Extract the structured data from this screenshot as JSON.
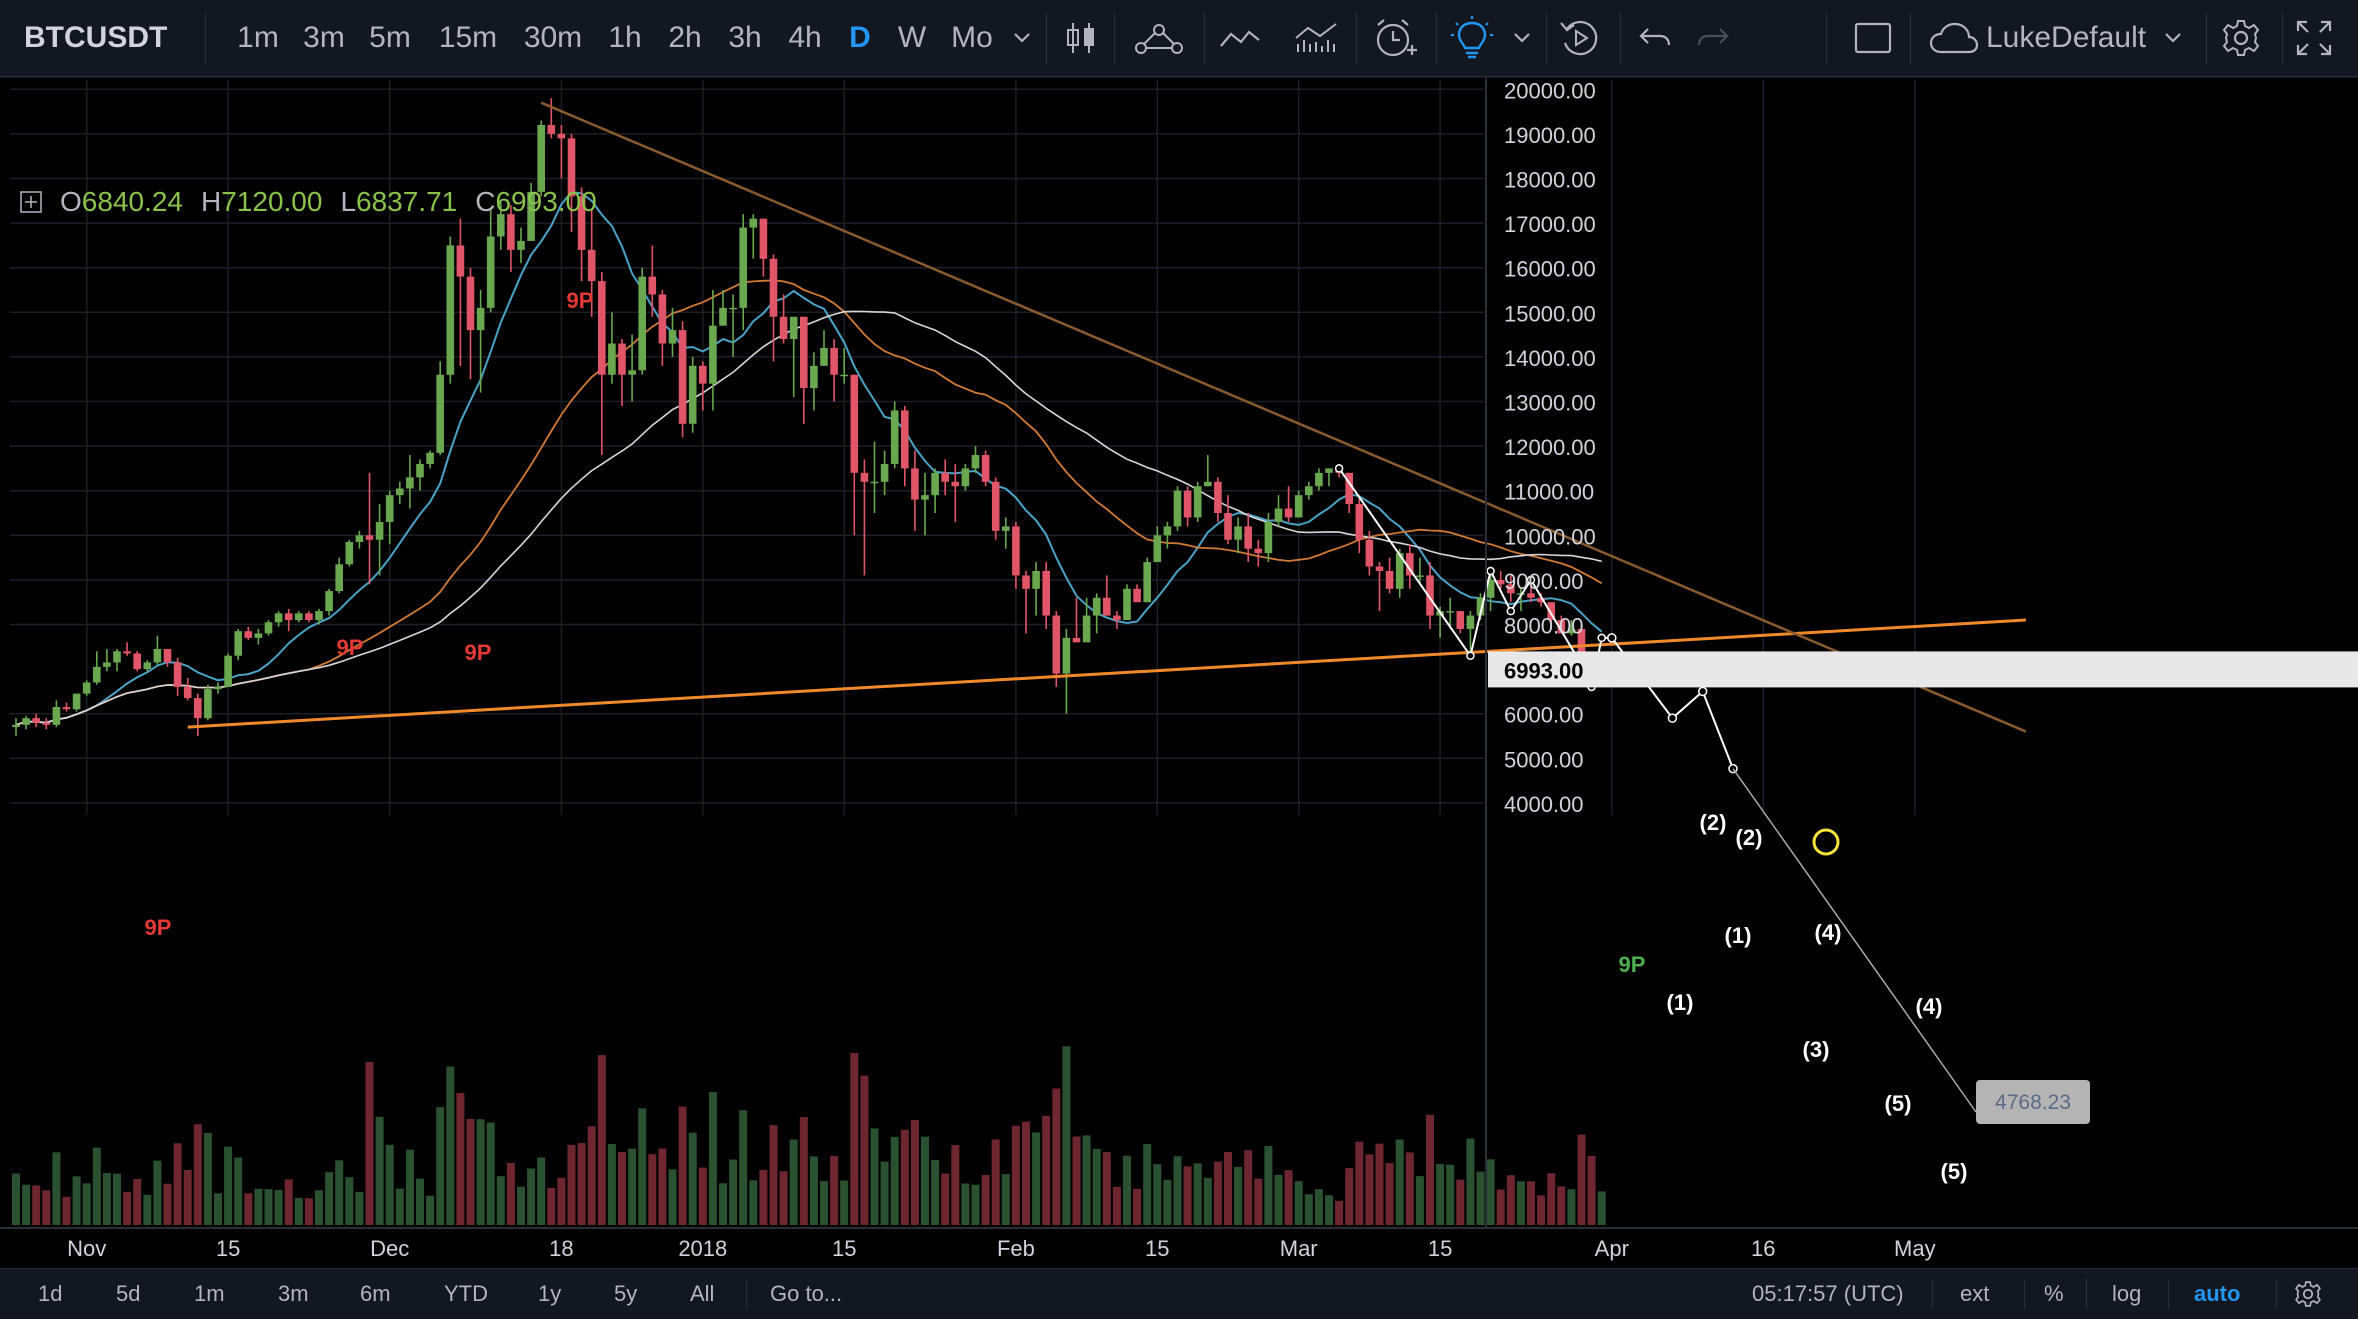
{
  "toolbar": {
    "symbol": "BTCUSDT",
    "timeframes": [
      "1m",
      "3m",
      "5m",
      "15m",
      "30m",
      "1h",
      "2h",
      "3h",
      "4h",
      "D",
      "W",
      "Mo"
    ],
    "active_timeframe": "D",
    "user": "LukeDefault",
    "icons": [
      "chevron-down-icon",
      "candles-icon",
      "indicators-icon",
      "line-icon",
      "compare-icon",
      "alert-icon",
      "lightbulb-icon",
      "replay-icon",
      "undo-icon",
      "redo-icon",
      "layout-icon",
      "cloud-icon",
      "gear-icon",
      "fullscreen-icon"
    ]
  },
  "ohlc": {
    "o_label": "O",
    "o": "6840.24",
    "h_label": "H",
    "h": "7120.00",
    "l_label": "L",
    "l": "6837.71",
    "c_label": "C",
    "c": "6993.00"
  },
  "price_axis": {
    "ticks": [
      "20000.00",
      "19000.00",
      "18000.00",
      "17000.00",
      "16000.00",
      "15000.00",
      "14000.00",
      "13000.00",
      "12000.00",
      "11000.00",
      "10000.00",
      "9000.00",
      "8000.00",
      "6993.00",
      "6000.00",
      "5000.00",
      "4000.00"
    ],
    "current_price": "6993.00"
  },
  "time_axis": {
    "ticks": [
      "Nov",
      "15",
      "Dec",
      "18",
      "2018",
      "15",
      "Feb",
      "15",
      "Mar",
      "15",
      "Apr",
      "16",
      "May"
    ]
  },
  "annotations": {
    "labels": [
      "9P",
      "9P",
      "9P",
      "9P",
      "9P",
      "(2)",
      "(2)",
      "(1)",
      "(1)",
      "(4)",
      "(4)",
      "(3)",
      "(5)",
      "(5)"
    ],
    "price_label": "4768.23"
  },
  "bottombar": {
    "ranges": [
      "1d",
      "5d",
      "1m",
      "3m",
      "6m",
      "YTD",
      "1y",
      "5y",
      "All"
    ],
    "goto": "Go to...",
    "time": "05:17:57 (UTC)",
    "options": [
      "ext",
      "%",
      "log",
      "auto"
    ],
    "active_option": "auto"
  },
  "colors": {
    "up": "#6aa84f",
    "down": "#e05568",
    "background": "#000000",
    "panel": "#131722",
    "accent": "#2196f3",
    "trendline_orange": "#f0892a",
    "trendline_brown": "#8a5a2e",
    "ma_blue": "#4aa3c8",
    "ma_white": "#d8d8d8",
    "ma_orange": "#d07a35",
    "marker_yellow": "#f5e33a"
  },
  "chart_data": {
    "type": "candlestick",
    "symbol": "BTCUSDT",
    "interval": "D",
    "ylim": [
      3700,
      20500
    ],
    "y_scale": "linear",
    "x_range": [
      "2017-10-25",
      "2018-05-11"
    ],
    "grid": true,
    "candles": [
      [
        "2017-10-25",
        5700,
        5900,
        5500,
        5750
      ],
      [
        "2017-10-26",
        5750,
        5950,
        5650,
        5900
      ],
      [
        "2017-10-27",
        5900,
        6000,
        5700,
        5800
      ],
      [
        "2017-10-28",
        5800,
        5900,
        5650,
        5750
      ],
      [
        "2017-10-29",
        5750,
        6300,
        5700,
        6150
      ],
      [
        "2017-10-30",
        6150,
        6250,
        6050,
        6100
      ],
      [
        "2017-10-31",
        6100,
        6450,
        6050,
        6450
      ],
      [
        "2017-11-01",
        6450,
        6750,
        6400,
        6700
      ],
      [
        "2017-11-02",
        6700,
        7400,
        6650,
        7050
      ],
      [
        "2017-11-03",
        7050,
        7450,
        6950,
        7150
      ],
      [
        "2017-11-04",
        7150,
        7450,
        6950,
        7400
      ],
      [
        "2017-11-05",
        7400,
        7600,
        7300,
        7350
      ],
      [
        "2017-11-06",
        7350,
        7400,
        6950,
        7000
      ],
      [
        "2017-11-07",
        7000,
        7200,
        6950,
        7150
      ],
      [
        "2017-11-08",
        7150,
        7750,
        7100,
        7450
      ],
      [
        "2017-11-09",
        7450,
        7450,
        7050,
        7150
      ],
      [
        "2017-11-10",
        7150,
        7250,
        6400,
        6600
      ],
      [
        "2017-11-11",
        6600,
        6800,
        6300,
        6350
      ],
      [
        "2017-11-12",
        6350,
        6450,
        5500,
        5900
      ],
      [
        "2017-11-13",
        5900,
        6650,
        5850,
        6550
      ],
      [
        "2017-11-14",
        6550,
        6700,
        6450,
        6600
      ],
      [
        "2017-11-15",
        6600,
        7350,
        6600,
        7300
      ],
      [
        "2017-11-16",
        7300,
        7900,
        7200,
        7850
      ],
      [
        "2017-11-17",
        7850,
        7950,
        7650,
        7700
      ],
      [
        "2017-11-18",
        7700,
        7900,
        7550,
        7800
      ],
      [
        "2017-11-19",
        7800,
        8100,
        7750,
        8050
      ],
      [
        "2017-11-20",
        8050,
        8300,
        7950,
        8250
      ],
      [
        "2017-11-21",
        8250,
        8350,
        7850,
        8100
      ],
      [
        "2017-11-22",
        8100,
        8300,
        8050,
        8250
      ],
      [
        "2017-11-23",
        8250,
        8300,
        8050,
        8100
      ],
      [
        "2017-11-24",
        8100,
        8350,
        8000,
        8300
      ],
      [
        "2017-11-25",
        8300,
        8800,
        8200,
        8750
      ],
      [
        "2017-11-26",
        8750,
        9500,
        8700,
        9350
      ],
      [
        "2017-11-27",
        9350,
        9900,
        9300,
        9850
      ],
      [
        "2017-11-28",
        9850,
        10100,
        9700,
        10000
      ],
      [
        "2017-11-29",
        10000,
        11400,
        8900,
        9900
      ],
      [
        "2017-11-30",
        9900,
        10700,
        9100,
        10300
      ],
      [
        "2017-12-01",
        10300,
        11000,
        9800,
        10900
      ],
      [
        "2017-12-02",
        10900,
        11200,
        10700,
        11050
      ],
      [
        "2017-12-03",
        11050,
        11800,
        10600,
        11300
      ],
      [
        "2017-12-04",
        11300,
        11700,
        11000,
        11600
      ],
      [
        "2017-12-05",
        11600,
        11900,
        11500,
        11850
      ],
      [
        "2017-12-06",
        11850,
        13900,
        11800,
        13600
      ],
      [
        "2017-12-07",
        13600,
        16700,
        13400,
        16500
      ],
      [
        "2017-12-08",
        16500,
        17100,
        13800,
        15800
      ],
      [
        "2017-12-09",
        15800,
        16000,
        13500,
        14600
      ],
      [
        "2017-12-10",
        14600,
        15500,
        13200,
        15100
      ],
      [
        "2017-12-11",
        15100,
        17300,
        15000,
        16700
      ],
      [
        "2017-12-12",
        16700,
        17500,
        16400,
        17200
      ],
      [
        "2017-12-13",
        17200,
        17400,
        15900,
        16400
      ],
      [
        "2017-12-14",
        16400,
        16900,
        16100,
        16600
      ],
      [
        "2017-12-15",
        16600,
        17900,
        16600,
        17700
      ],
      [
        "2017-12-16",
        17700,
        19300,
        17600,
        19200
      ],
      [
        "2017-12-17",
        19200,
        19800,
        18900,
        19000
      ],
      [
        "2017-12-18",
        19000,
        19200,
        18000,
        18900
      ],
      [
        "2017-12-19",
        18900,
        19000,
        16800,
        17600
      ],
      [
        "2017-12-20",
        17600,
        17800,
        15700,
        16400
      ],
      [
        "2017-12-21",
        16400,
        17300,
        14900,
        15700
      ],
      [
        "2017-12-22",
        15700,
        15900,
        11800,
        13600
      ],
      [
        "2017-12-23",
        13600,
        15000,
        13400,
        14300
      ],
      [
        "2017-12-24",
        14300,
        14400,
        12900,
        13600
      ],
      [
        "2017-12-25",
        13600,
        14500,
        13000,
        13700
      ],
      [
        "2017-12-26",
        13700,
        16000,
        13600,
        15800
      ],
      [
        "2017-12-27",
        15800,
        16500,
        14900,
        15400
      ],
      [
        "2017-12-28",
        15400,
        15500,
        13800,
        14300
      ],
      [
        "2017-12-29",
        14300,
        15100,
        14000,
        14600
      ],
      [
        "2017-12-30",
        14600,
        14800,
        12200,
        12500
      ],
      [
        "2017-12-31",
        12500,
        14000,
        12300,
        13800
      ],
      [
        "2018-01-01",
        13800,
        13900,
        12800,
        13400
      ],
      [
        "2018-01-02",
        13400,
        15500,
        12800,
        14700
      ],
      [
        "2018-01-03",
        14700,
        15500,
        14700,
        15100
      ],
      [
        "2018-01-04",
        15100,
        15400,
        14000,
        15100
      ],
      [
        "2018-01-05",
        15100,
        17200,
        14600,
        16900
      ],
      [
        "2018-01-06",
        16900,
        17200,
        16200,
        17100
      ],
      [
        "2018-01-07",
        17100,
        17100,
        15800,
        16200
      ],
      [
        "2018-01-08",
        16200,
        16300,
        13900,
        14900
      ],
      [
        "2018-01-09",
        14900,
        15400,
        14300,
        14400
      ],
      [
        "2018-01-10",
        14400,
        14900,
        13100,
        14900
      ],
      [
        "2018-01-11",
        14900,
        14900,
        12500,
        13300
      ],
      [
        "2018-01-12",
        13300,
        14100,
        12800,
        13800
      ],
      [
        "2018-01-13",
        13800,
        14600,
        13800,
        14200
      ],
      [
        "2018-01-14",
        14200,
        14400,
        13000,
        13600
      ],
      [
        "2018-01-15",
        13600,
        14200,
        13400,
        13600
      ],
      [
        "2018-01-16",
        13600,
        13600,
        10000,
        11400
      ],
      [
        "2018-01-17",
        11400,
        11700,
        9100,
        11200
      ],
      [
        "2018-01-18",
        11200,
        12100,
        10500,
        11200
      ],
      [
        "2018-01-19",
        11200,
        11900,
        10900,
        11600
      ],
      [
        "2018-01-20",
        11600,
        13000,
        11500,
        12800
      ],
      [
        "2018-01-21",
        12800,
        12900,
        11100,
        11500
      ],
      [
        "2018-01-22",
        11500,
        11900,
        10100,
        10800
      ],
      [
        "2018-01-23",
        10800,
        11400,
        10000,
        10900
      ],
      [
        "2018-01-24",
        10900,
        11500,
        10500,
        11400
      ],
      [
        "2018-01-25",
        11400,
        11700,
        10900,
        11200
      ],
      [
        "2018-01-26",
        11200,
        11600,
        10300,
        11100
      ],
      [
        "2018-01-27",
        11100,
        11600,
        11000,
        11500
      ],
      [
        "2018-01-28",
        11500,
        12000,
        11400,
        11800
      ],
      [
        "2018-01-29",
        11800,
        11900,
        11100,
        11200
      ],
      [
        "2018-01-30",
        11200,
        11300,
        9900,
        10100
      ],
      [
        "2018-01-31",
        10100,
        10400,
        9700,
        10200
      ],
      [
        "2018-02-01",
        10200,
        10300,
        8800,
        9100
      ],
      [
        "2018-02-02",
        9100,
        9200,
        7800,
        8800
      ],
      [
        "2018-02-03",
        8800,
        9400,
        8200,
        9200
      ],
      [
        "2018-02-04",
        9200,
        9400,
        7900,
        8200
      ],
      [
        "2018-02-05",
        8200,
        8300,
        6600,
        6900
      ],
      [
        "2018-02-06",
        6900,
        7900,
        6000,
        7700
      ],
      [
        "2018-02-07",
        7700,
        8600,
        7600,
        7600
      ],
      [
        "2018-02-08",
        7600,
        8600,
        7600,
        8200
      ],
      [
        "2018-02-09",
        8200,
        8700,
        7800,
        8600
      ],
      [
        "2018-02-10",
        8600,
        9100,
        8200,
        8200
      ],
      [
        "2018-02-11",
        8200,
        8300,
        7900,
        8100
      ],
      [
        "2018-02-12",
        8100,
        8900,
        8100,
        8800
      ],
      [
        "2018-02-13",
        8800,
        8900,
        8500,
        8500
      ],
      [
        "2018-02-14",
        8500,
        9500,
        8500,
        9400
      ],
      [
        "2018-02-15",
        9400,
        10200,
        9400,
        10000
      ],
      [
        "2018-02-16",
        10000,
        10300,
        9700,
        10200
      ],
      [
        "2018-02-17",
        10200,
        11100,
        10100,
        11000
      ],
      [
        "2018-02-18",
        11000,
        11100,
        10200,
        10400
      ],
      [
        "2018-02-19",
        10400,
        11200,
        10300,
        11100
      ],
      [
        "2018-02-20",
        11100,
        11800,
        11100,
        11200
      ],
      [
        "2018-02-21",
        11200,
        11300,
        10300,
        10500
      ],
      [
        "2018-02-22",
        10500,
        10900,
        9800,
        9900
      ],
      [
        "2018-02-23",
        9900,
        10400,
        9600,
        10200
      ],
      [
        "2018-02-24",
        10200,
        10500,
        9400,
        9700
      ],
      [
        "2018-02-25",
        9700,
        9900,
        9300,
        9600
      ],
      [
        "2018-02-26",
        9600,
        10500,
        9400,
        10300
      ],
      [
        "2018-02-27",
        10300,
        10900,
        10200,
        10600
      ],
      [
        "2018-02-28",
        10600,
        11100,
        10300,
        10400
      ],
      [
        "2018-03-01",
        10400,
        11000,
        10400,
        10900
      ],
      [
        "2018-03-02",
        10900,
        11200,
        10800,
        11100
      ],
      [
        "2018-03-03",
        11100,
        11500,
        11000,
        11400
      ],
      [
        "2018-03-04",
        11400,
        11500,
        11100,
        11500
      ],
      [
        "2018-03-05",
        11500,
        11600,
        11300,
        11400
      ],
      [
        "2018-03-06",
        11400,
        11400,
        10500,
        10700
      ],
      [
        "2018-03-07",
        10700,
        10900,
        9600,
        9900
      ],
      [
        "2018-03-08",
        9900,
        10100,
        9100,
        9300
      ],
      [
        "2018-03-09",
        9300,
        9400,
        8300,
        9200
      ],
      [
        "2018-03-10",
        9200,
        9500,
        8700,
        8800
      ],
      [
        "2018-03-11",
        8800,
        9700,
        8600,
        9600
      ],
      [
        "2018-03-12",
        9600,
        9800,
        8800,
        9100
      ],
      [
        "2018-03-13",
        9100,
        9500,
        8900,
        9100
      ],
      [
        "2018-03-14",
        9100,
        9400,
        7900,
        8200
      ],
      [
        "2018-03-15",
        8200,
        8400,
        7700,
        8300
      ],
      [
        "2018-03-16",
        8300,
        8600,
        7900,
        8300
      ],
      [
        "2018-03-17",
        8300,
        8300,
        7800,
        7900
      ],
      [
        "2018-03-18",
        7900,
        8300,
        7300,
        8200
      ],
      [
        "2018-03-19",
        8200,
        8700,
        8100,
        8600
      ],
      [
        "2018-03-20",
        8600,
        9100,
        8300,
        9000
      ],
      [
        "2018-03-21",
        9000,
        9200,
        8800,
        8900
      ],
      [
        "2018-03-22",
        8900,
        9100,
        8500,
        8700
      ],
      [
        "2018-03-23",
        8700,
        8800,
        8300,
        8700
      ],
      [
        "2018-03-24",
        8700,
        9000,
        8500,
        8600
      ],
      [
        "2018-03-25",
        8600,
        8700,
        8400,
        8500
      ],
      [
        "2018-03-26",
        8500,
        8500,
        7900,
        8100
      ],
      [
        "2018-03-27",
        8100,
        8200,
        7800,
        7800
      ],
      [
        "2018-03-28",
        7800,
        8100,
        7750,
        7900
      ],
      [
        "2018-03-29",
        7900,
        7950,
        6900,
        7100
      ],
      [
        "2018-03-30",
        7100,
        7300,
        6600,
        6850
      ],
      [
        "2018-03-31",
        6840.24,
        7120.0,
        6837.71,
        6993.0
      ]
    ],
    "trendlines": [
      {
        "name": "",
        "from": [
          "2017-11-11",
          5700
        ],
        "to": [
          "2018-05-12",
          8100
        ]
      },
      {
        "name": "",
        "from": [
          "2017-12-16",
          19700
        ],
        "to": [
          "2018-05-12",
          5600
        ]
      }
    ],
    "elliott_projection": [
      {
        "label": "(4)",
        "date": "2018-04-01",
        "value": 7700
      },
      {
        "label": "(5)",
        "date": "2018-04-07",
        "value": 5900
      },
      {
        "label": "(4)",
        "date": "2018-04-10",
        "value": 6500
      },
      {
        "label": "(5)",
        "date": "2018-04-13",
        "value": 4768.23
      }
    ],
    "last_price": 6993.0,
    "projected_target": 4768.23
  }
}
